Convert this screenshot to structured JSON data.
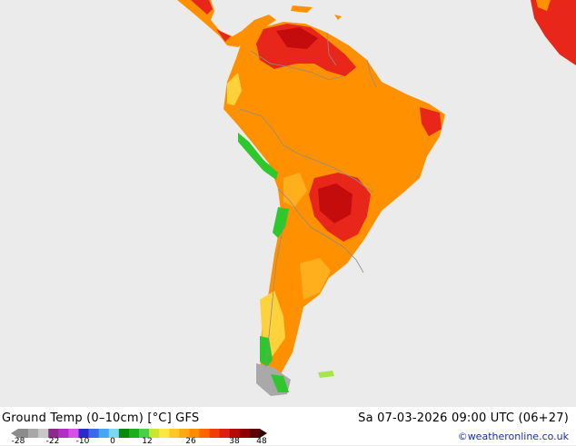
{
  "header": {
    "title": "Ground Temp (0–10cm) [°C] GFS",
    "datetime": "Sa 07-03-2026 09:00 UTC (06+27)",
    "credit": "©weatheronline.co.uk"
  },
  "legend": {
    "tick_labels": [
      "-28",
      "-22",
      "-10",
      "0",
      "12",
      "26",
      "38",
      "48"
    ],
    "colors": [
      "#8c8c8c",
      "#a8a8a8",
      "#c8c8c8",
      "#8a2a8a",
      "#b42cc8",
      "#d84ee8",
      "#2a2ac8",
      "#3a6ae8",
      "#46a6f0",
      "#7cd8f0",
      "#0a8a0a",
      "#18b018",
      "#48d048",
      "#c8e632",
      "#ffe640",
      "#ffc828",
      "#ffa814",
      "#ff8c00",
      "#ff6400",
      "#f03c0a",
      "#dc1e14",
      "#b40a0a",
      "#8c0000",
      "#5a0000"
    ]
  },
  "map": {
    "colors": {
      "ocean": "#ebebeb",
      "orange": "#ff9100",
      "light_orange": "#ffae1c",
      "yellow": "#ffd23c",
      "red": "#e8261a",
      "dark_red": "#c40c0c",
      "green": "#2ec82e",
      "light_green": "#a6e64a",
      "gray": "#a9a9a9",
      "border": "#8c8c8c"
    }
  }
}
